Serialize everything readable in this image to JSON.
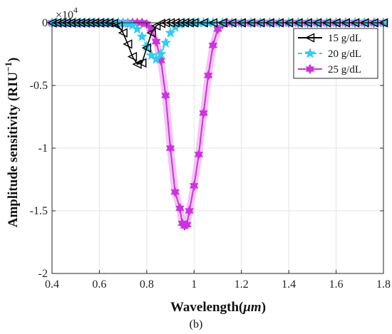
{
  "figure": {
    "panel_label": "(b)"
  },
  "chart_data": {
    "type": "line",
    "title": "",
    "xlabel": "Wavelength(μm)",
    "xlabel_main": "Wavelength(",
    "xlabel_unit": "μm",
    "xlabel_close": ")",
    "ylabel": "Amplitude sensitivity (RIU−1)",
    "ylabel_main": "Amplitude sensitivity (RIU",
    "ylabel_sup": "−1",
    "ylabel_close": ")",
    "y_exponent_base": "×10",
    "y_exponent_power": "4",
    "y_scale_factor": 10000,
    "xlim": [
      0.4,
      1.8
    ],
    "ylim": [
      -2,
      0
    ],
    "x_ticks": [
      0.4,
      0.6,
      0.8,
      1.0,
      1.2,
      1.4,
      1.6,
      1.8
    ],
    "x_tick_labels": [
      "0.4",
      "0.6",
      "0.8",
      "1",
      "1.2",
      "1.4",
      "1.6",
      "1.8"
    ],
    "y_ticks": [
      0,
      -0.5,
      -1,
      -1.5,
      -2
    ],
    "y_tick_labels": [
      "0",
      "-0.5",
      "-1",
      "-1.5",
      "-2"
    ],
    "grid": true,
    "legend_position": "top-right",
    "series": [
      {
        "name": "15 g/dL",
        "color": "#000000",
        "marker": "triangle-left",
        "line_style": "solid",
        "x": [
          0.4,
          0.42,
          0.44,
          0.46,
          0.48,
          0.5,
          0.52,
          0.54,
          0.56,
          0.58,
          0.6,
          0.62,
          0.64,
          0.66,
          0.68,
          0.7,
          0.72,
          0.74,
          0.76,
          0.78,
          0.8,
          0.82,
          0.84,
          0.86,
          0.88,
          0.9,
          0.92,
          0.94,
          0.96,
          0.98,
          1.0,
          1.04,
          1.08,
          1.12,
          1.16,
          1.2,
          1.24,
          1.28,
          1.32,
          1.36,
          1.4,
          1.44,
          1.48,
          1.52,
          1.56,
          1.6,
          1.64,
          1.68,
          1.72,
          1.76,
          1.8
        ],
        "y": [
          0,
          0,
          0,
          0,
          0,
          0,
          0,
          0,
          0,
          0,
          0,
          0,
          0,
          -0.005,
          -0.025,
          -0.08,
          -0.17,
          -0.27,
          -0.33,
          -0.32,
          -0.2,
          -0.08,
          -0.025,
          -0.005,
          0,
          0,
          0,
          0,
          0,
          0,
          0,
          0,
          0,
          0,
          0,
          0,
          0,
          0,
          0,
          0,
          0,
          0,
          0,
          0,
          0,
          0,
          0,
          0,
          0,
          0,
          0
        ]
      },
      {
        "name": "20 g/dL",
        "color": "#33ccee",
        "marker": "star",
        "line_style": "dashed",
        "x": [
          0.4,
          0.42,
          0.44,
          0.46,
          0.48,
          0.5,
          0.52,
          0.54,
          0.56,
          0.58,
          0.6,
          0.62,
          0.64,
          0.66,
          0.68,
          0.7,
          0.72,
          0.74,
          0.76,
          0.78,
          0.8,
          0.82,
          0.84,
          0.86,
          0.88,
          0.9,
          0.92,
          0.94,
          0.96,
          0.98,
          1.0,
          1.02,
          1.04,
          1.06,
          1.08,
          1.12,
          1.16,
          1.2,
          1.24,
          1.28,
          1.32,
          1.36,
          1.4,
          1.44,
          1.48,
          1.52,
          1.56,
          1.6,
          1.64,
          1.68,
          1.72,
          1.76,
          1.8
        ],
        "y": [
          0,
          0,
          0,
          0,
          0,
          0,
          0,
          0,
          0,
          0,
          0,
          0,
          0,
          0,
          0,
          0,
          -0.005,
          -0.02,
          -0.05,
          -0.11,
          -0.19,
          -0.26,
          -0.29,
          -0.25,
          -0.16,
          -0.08,
          -0.035,
          -0.012,
          -0.004,
          -0.001,
          0,
          0,
          0,
          0,
          0,
          0,
          0,
          0,
          0,
          0,
          0,
          0,
          0,
          0,
          0,
          0,
          0,
          0,
          0,
          0,
          0,
          0,
          0
        ]
      },
      {
        "name": "25 g/dL",
        "color": "#cc33dd",
        "marker": "hexagram",
        "line_style": "solid",
        "x": [
          0.4,
          0.42,
          0.44,
          0.46,
          0.48,
          0.5,
          0.52,
          0.54,
          0.56,
          0.58,
          0.6,
          0.62,
          0.64,
          0.66,
          0.68,
          0.7,
          0.72,
          0.74,
          0.76,
          0.78,
          0.8,
          0.82,
          0.84,
          0.86,
          0.88,
          0.9,
          0.92,
          0.94,
          0.95,
          0.96,
          0.97,
          0.98,
          1.0,
          1.02,
          1.04,
          1.06,
          1.08,
          1.1,
          1.12,
          1.14,
          1.16,
          1.2,
          1.24,
          1.28,
          1.32,
          1.36,
          1.4,
          1.44,
          1.48,
          1.52,
          1.56,
          1.6,
          1.64,
          1.68,
          1.72,
          1.76,
          1.8
        ],
        "y": [
          0,
          0,
          0,
          0,
          0,
          0,
          0,
          0,
          0,
          0,
          0,
          0,
          0,
          0,
          0,
          0,
          0,
          0,
          0,
          0,
          -0.01,
          -0.05,
          -0.15,
          -0.3,
          -0.58,
          -1.0,
          -1.35,
          -1.48,
          -1.6,
          -1.62,
          -1.61,
          -1.5,
          -1.3,
          -1.05,
          -0.72,
          -0.42,
          -0.18,
          -0.05,
          -0.01,
          0,
          0,
          0,
          0,
          0,
          0,
          0,
          0,
          0,
          0,
          0,
          0,
          0,
          0,
          0,
          0,
          0,
          0
        ]
      }
    ]
  }
}
